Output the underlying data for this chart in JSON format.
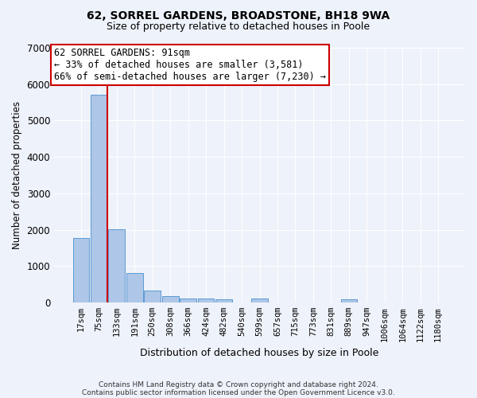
{
  "title": "62, SORREL GARDENS, BROADSTONE, BH18 9WA",
  "subtitle": "Size of property relative to detached houses in Poole",
  "xlabel": "Distribution of detached houses by size in Poole",
  "ylabel": "Number of detached properties",
  "footnote1": "Contains HM Land Registry data © Crown copyright and database right 2024.",
  "footnote2": "Contains public sector information licensed under the Open Government Licence v3.0.",
  "bin_labels": [
    "17sqm",
    "75sqm",
    "133sqm",
    "191sqm",
    "250sqm",
    "308sqm",
    "366sqm",
    "424sqm",
    "482sqm",
    "540sqm",
    "599sqm",
    "657sqm",
    "715sqm",
    "773sqm",
    "831sqm",
    "889sqm",
    "947sqm",
    "1006sqm",
    "1064sqm",
    "1122sqm",
    "1180sqm"
  ],
  "bar_values": [
    1780,
    5700,
    2020,
    800,
    340,
    185,
    100,
    100,
    80,
    0,
    100,
    0,
    0,
    0,
    0,
    80,
    0,
    0,
    0,
    0,
    0
  ],
  "bar_color": "#aec6e8",
  "bar_edge_color": "#5b9bd5",
  "ylim": [
    0,
    7000
  ],
  "yticks": [
    0,
    1000,
    2000,
    3000,
    4000,
    5000,
    6000,
    7000
  ],
  "vline_color": "#cc0000",
  "annotation_text": "62 SORREL GARDENS: 91sqm\n← 33% of detached houses are smaller (3,581)\n66% of semi-detached houses are larger (7,230) →",
  "annotation_box_color": "#cc0000",
  "background_color": "#eef2fa",
  "grid_color": "#ffffff",
  "property_bin_index": 1
}
